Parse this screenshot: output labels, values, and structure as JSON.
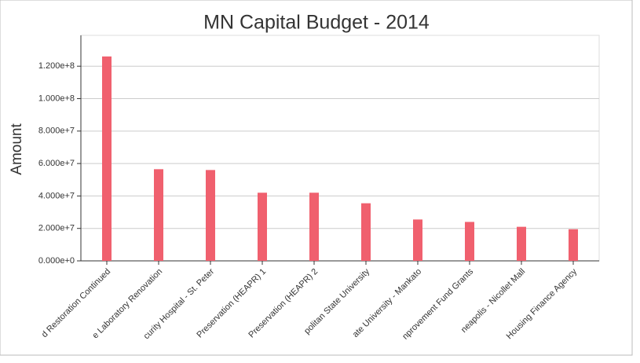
{
  "chart_data": {
    "type": "bar",
    "title": "MN Capital Budget - 2014",
    "y_label": "Amount",
    "categories": [
      "d Restoration Continued",
      "e Laboratory Renovation",
      "curity Hospital - St. Peter",
      "Preservation (HEAPR) 1",
      "Preservation (HEAPR) 2",
      "politan State University",
      "ate University - Mankato",
      "nprovement Fund Grants",
      "neapolis - Nicollet Mall",
      "Housing Finance Agency"
    ],
    "values": [
      126000000,
      56500000,
      56000000,
      42000000,
      42000000,
      35500000,
      25500000,
      24000000,
      21000000,
      19500000
    ],
    "color": "#f0606e",
    "ylim": [
      0,
      139000000
    ],
    "yticks": [
      {
        "value": 0,
        "label": "0.000e+0"
      },
      {
        "value": 20000000,
        "label": "2.000e+7"
      },
      {
        "value": 40000000,
        "label": "4.000e+7"
      },
      {
        "value": 60000000,
        "label": "6.000e+7"
      },
      {
        "value": 80000000,
        "label": "8.000e+7"
      },
      {
        "value": 100000000,
        "label": "1.000e+8"
      },
      {
        "value": 120000000,
        "label": "1.200e+8"
      }
    ],
    "grid": true
  }
}
